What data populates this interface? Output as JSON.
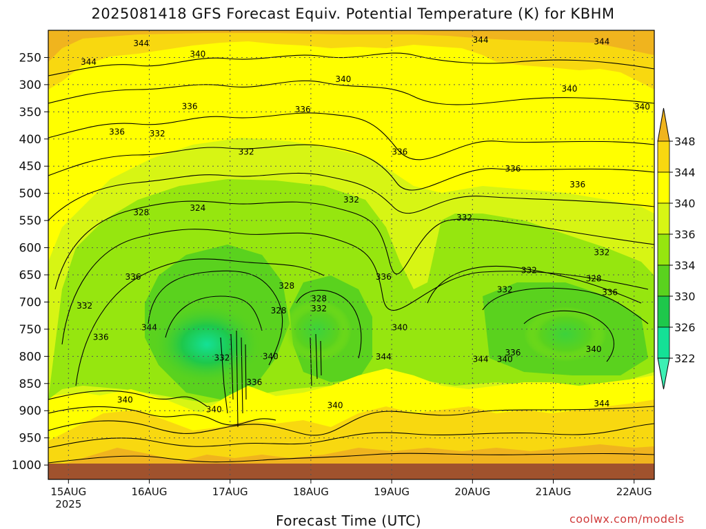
{
  "chart_data": {
    "type": "heatmap",
    "title": "2025081418 GFS Forecast Equiv. Potential Temperature (K) for KBHM",
    "xlabel": "Forecast Time (UTC)",
    "ylabel": "",
    "y_ticks": [
      250,
      300,
      350,
      400,
      450,
      500,
      550,
      600,
      650,
      700,
      750,
      800,
      850,
      900,
      950,
      1000
    ],
    "y_range": [
      1000,
      200
    ],
    "x_ticks": [
      {
        "label": "15AUG",
        "sub": "2025",
        "day": 15
      },
      {
        "label": "16AUG",
        "sub": "",
        "day": 16
      },
      {
        "label": "17AUG",
        "sub": "",
        "day": 17
      },
      {
        "label": "18AUG",
        "sub": "",
        "day": 18
      },
      {
        "label": "19AUG",
        "sub": "",
        "day": 19
      },
      {
        "label": "20AUG",
        "sub": "",
        "day": 20
      },
      {
        "label": "21AUG",
        "sub": "",
        "day": 21
      },
      {
        "label": "22AUG",
        "sub": "",
        "day": 22
      }
    ],
    "x_range": [
      14.75,
      22.25
    ],
    "colorbar": {
      "labels": [
        348,
        344,
        340,
        336,
        334,
        330,
        326,
        322
      ],
      "colors": [
        "#f0b41e",
        "#f8d810",
        "#ffff00",
        "#d7f514",
        "#96e60f",
        "#5ad21e",
        "#1ec84b",
        "#14e196",
        "#3cf0b4"
      ]
    },
    "contour_labels": [
      {
        "day": 15.9,
        "p": 224,
        "text": "344"
      },
      {
        "day": 15.25,
        "p": 258,
        "text": "344"
      },
      {
        "day": 16.6,
        "p": 244,
        "text": "340"
      },
      {
        "day": 18.4,
        "p": 290,
        "text": "340"
      },
      {
        "day": 20.1,
        "p": 218,
        "text": "344"
      },
      {
        "day": 21.6,
        "p": 221,
        "text": "344"
      },
      {
        "day": 21.2,
        "p": 308,
        "text": "340"
      },
      {
        "day": 22.1,
        "p": 341,
        "text": "340"
      },
      {
        "day": 16.5,
        "p": 340,
        "text": "336"
      },
      {
        "day": 17.9,
        "p": 346,
        "text": "336"
      },
      {
        "day": 15.6,
        "p": 387,
        "text": "336"
      },
      {
        "day": 16.1,
        "p": 390,
        "text": "332"
      },
      {
        "day": 17.2,
        "p": 424,
        "text": "332"
      },
      {
        "day": 19.1,
        "p": 424,
        "text": "336"
      },
      {
        "day": 20.5,
        "p": 455,
        "text": "336"
      },
      {
        "day": 21.3,
        "p": 484,
        "text": "336"
      },
      {
        "day": 18.5,
        "p": 512,
        "text": "332"
      },
      {
        "day": 19.9,
        "p": 545,
        "text": "332"
      },
      {
        "day": 15.9,
        "p": 535,
        "text": "328"
      },
      {
        "day": 16.6,
        "p": 527,
        "text": "324"
      },
      {
        "day": 21.6,
        "p": 609,
        "text": "332"
      },
      {
        "day": 15.8,
        "p": 654,
        "text": "336"
      },
      {
        "day": 18.9,
        "p": 654,
        "text": "336"
      },
      {
        "day": 20.7,
        "p": 642,
        "text": "332"
      },
      {
        "day": 17.7,
        "p": 670,
        "text": "328"
      },
      {
        "day": 18.1,
        "p": 694,
        "text": "328"
      },
      {
        "day": 18.1,
        "p": 712,
        "text": "332"
      },
      {
        "day": 20.4,
        "p": 677,
        "text": "332"
      },
      {
        "day": 21.5,
        "p": 657,
        "text": "328"
      },
      {
        "day": 21.7,
        "p": 682,
        "text": "336"
      },
      {
        "day": 15.2,
        "p": 707,
        "text": "332"
      },
      {
        "day": 17.6,
        "p": 716,
        "text": "328"
      },
      {
        "day": 16.0,
        "p": 747,
        "text": "344"
      },
      {
        "day": 19.1,
        "p": 747,
        "text": "340"
      },
      {
        "day": 15.4,
        "p": 765,
        "text": "336"
      },
      {
        "day": 16.9,
        "p": 803,
        "text": "332"
      },
      {
        "day": 17.5,
        "p": 800,
        "text": "340"
      },
      {
        "day": 18.9,
        "p": 801,
        "text": "344"
      },
      {
        "day": 20.1,
        "p": 805,
        "text": "344"
      },
      {
        "day": 20.5,
        "p": 793,
        "text": "336"
      },
      {
        "day": 20.4,
        "p": 805,
        "text": "340"
      },
      {
        "day": 21.5,
        "p": 787,
        "text": "340"
      },
      {
        "day": 17.3,
        "p": 848,
        "text": "336"
      },
      {
        "day": 15.7,
        "p": 880,
        "text": "340"
      },
      {
        "day": 16.8,
        "p": 898,
        "text": "340"
      },
      {
        "day": 18.3,
        "p": 890,
        "text": "340"
      },
      {
        "day": 21.6,
        "p": 887,
        "text": "344"
      }
    ]
  },
  "credit": "coolwx.com/models"
}
